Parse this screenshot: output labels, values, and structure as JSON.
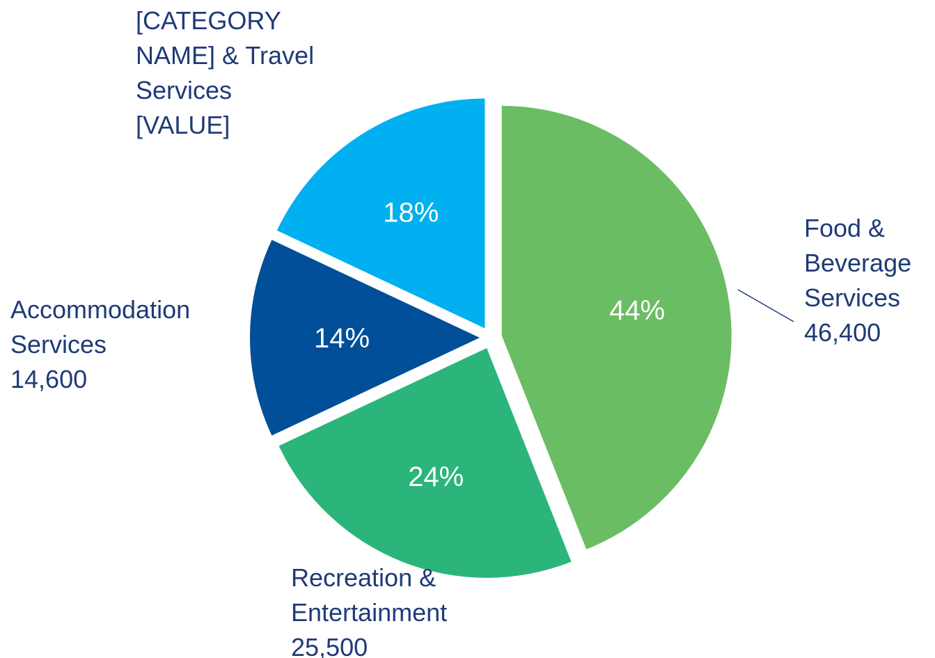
{
  "chart_data": {
    "type": "pie",
    "categories": [
      "Food & Beverage Services",
      "Recreation & Entertainment",
      "Accommodation Services",
      "[CATEGORY NAME] & Travel Services"
    ],
    "values": [
      44,
      24,
      14,
      18
    ],
    "value_labels": [
      "44%",
      "24%",
      "14%",
      "18%"
    ],
    "category_values": [
      "46,400",
      "25,500",
      "14,600",
      "[VALUE]"
    ],
    "colors": [
      "#6abd62",
      "#2bb57a",
      "#004f98",
      "#00b0f0"
    ]
  }
}
